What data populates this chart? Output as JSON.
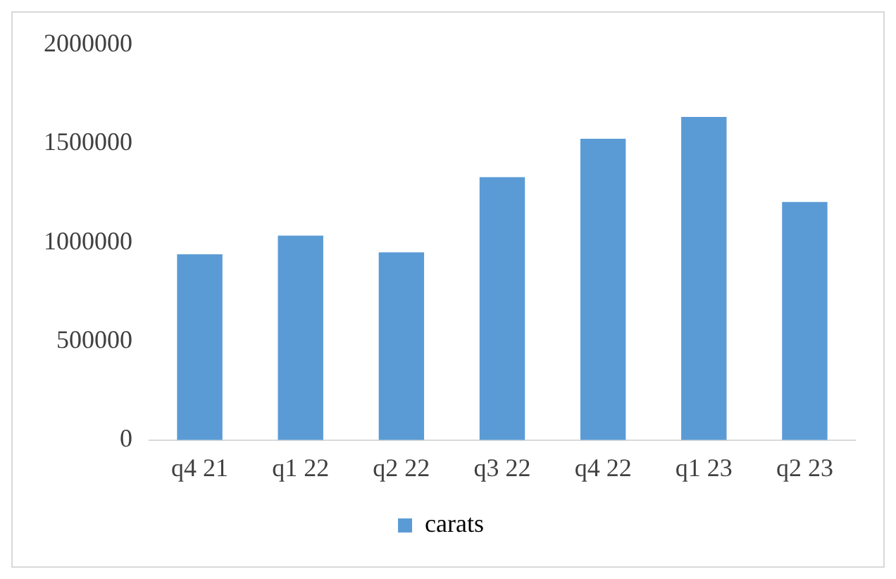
{
  "chart_data": {
    "type": "bar",
    "categories": [
      "q4 21",
      "q1 22",
      "q2 22",
      "q3 22",
      "q4 22",
      "q1 23",
      "q2 23"
    ],
    "series": [
      {
        "name": "carats",
        "color": "#5b9bd5",
        "values": [
          940000,
          1035000,
          950000,
          1330000,
          1525000,
          1635000,
          1205000
        ]
      }
    ],
    "ylim": [
      0,
      2000000
    ],
    "yticks": [
      0,
      500000,
      1000000,
      1500000,
      2000000
    ],
    "grid": false,
    "legend": "bottom"
  }
}
